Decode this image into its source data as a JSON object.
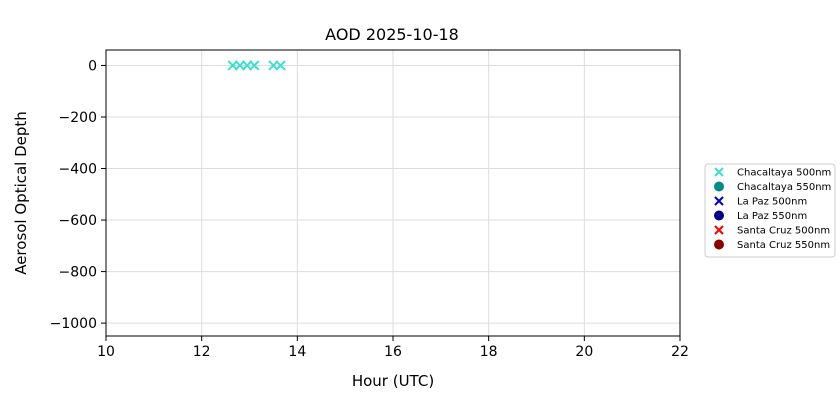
{
  "chart_data": {
    "type": "scatter",
    "title": "AOD 2025-10-18",
    "xlabel": "Hour (UTC)",
    "ylabel": "Aerosol Optical Depth",
    "xlim": [
      10,
      22
    ],
    "ylim": [
      -1050,
      60
    ],
    "xticks": [
      10,
      12,
      14,
      16,
      18,
      20,
      22
    ],
    "yticks": [
      0,
      -200,
      -400,
      -600,
      -800,
      -1000
    ],
    "xtick_labels": [
      "10",
      "12",
      "14",
      "16",
      "18",
      "20",
      "22"
    ],
    "ytick_labels": [
      "0",
      "−200",
      "−400",
      "−600",
      "−800",
      "−1000"
    ],
    "grid": true,
    "legend_position": "right",
    "series": [
      {
        "name": "Chacaltaya 500nm",
        "marker": "x",
        "color": "#40e0d0",
        "x": [
          12.65,
          12.8,
          12.95,
          13.1,
          13.5,
          13.65
        ],
        "y": [
          0,
          0,
          0,
          0,
          0,
          0
        ]
      },
      {
        "name": "Chacaltaya 550nm",
        "marker": "circle",
        "color": "#008b8b",
        "x": [],
        "y": []
      },
      {
        "name": "La Paz 500nm",
        "marker": "x",
        "color": "#0000cd",
        "x": [],
        "y": []
      },
      {
        "name": "La Paz 550nm",
        "marker": "circle",
        "color": "#00008b",
        "x": [],
        "y": []
      },
      {
        "name": "Santa Cruz 500nm",
        "marker": "x",
        "color": "#ff0000",
        "x": [],
        "y": []
      },
      {
        "name": "Santa Cruz 550nm",
        "marker": "circle",
        "color": "#8b0000",
        "x": [],
        "y": []
      }
    ]
  }
}
